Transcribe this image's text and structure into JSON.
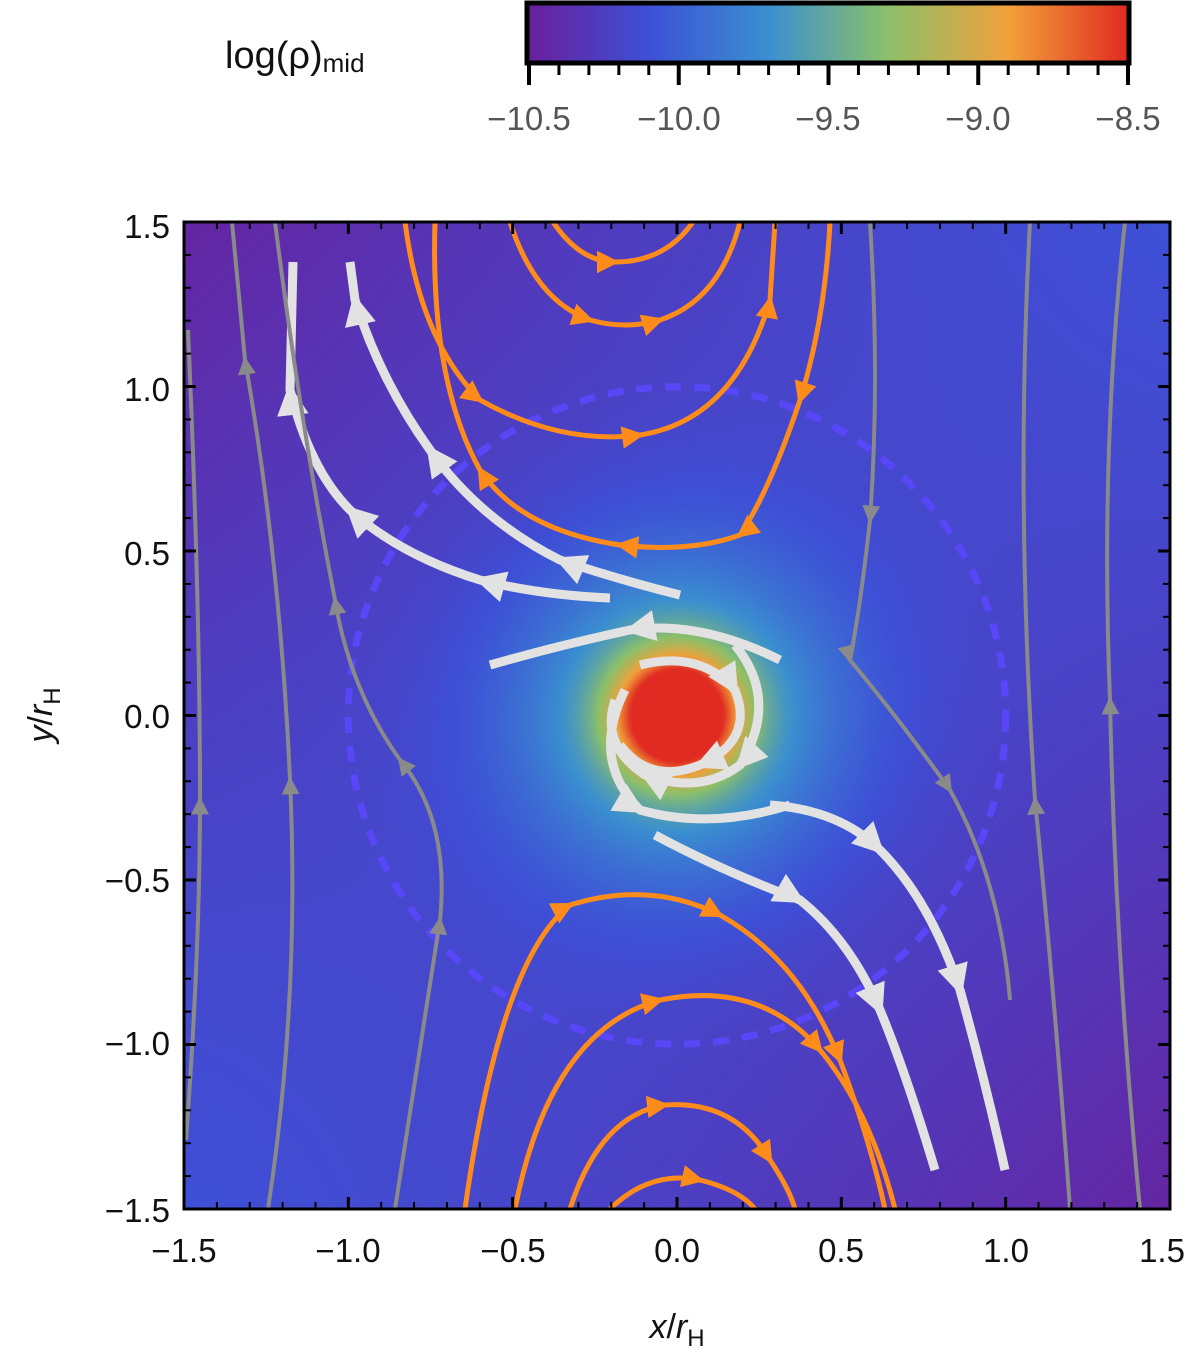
{
  "chart_data": {
    "type": "heatmap",
    "overlay": "streamlines",
    "xlabel": {
      "var": "x",
      "sep": "/",
      "base": "r",
      "sub": "H"
    },
    "ylabel": {
      "var": "y",
      "sep": "/",
      "base": "r",
      "sub": "H"
    },
    "xlim": [
      -1.5,
      1.5
    ],
    "ylim": [
      -1.5,
      1.5
    ],
    "x_ticks": [
      "−1.5",
      "−1.0",
      "−0.5",
      "0.0",
      "0.5",
      "1.0",
      "1.5"
    ],
    "x_tick_values": [
      -1.5,
      -1.0,
      -0.5,
      0.0,
      0.5,
      1.0,
      1.5
    ],
    "y_ticks": [
      "−1.5",
      "−1.0",
      "−0.5",
      "0.0",
      "0.5",
      "1.0",
      "1.5"
    ],
    "y_tick_values": [
      -1.5,
      -1.0,
      -0.5,
      0.0,
      0.5,
      1.0,
      1.5
    ],
    "colorbar": {
      "title": {
        "base": "log(ρ)",
        "sub": "mid"
      },
      "range": [
        -10.5,
        -8.5
      ],
      "ticks": [
        "−10.5",
        "−10.0",
        "−9.5",
        "−9.0",
        "−8.5"
      ],
      "tick_values": [
        -10.5,
        -10.0,
        -9.5,
        -9.0,
        -8.5
      ],
      "colormap": [
        "#6a1f9a",
        "#3e4fd6",
        "#3a8fd0",
        "#8cc06a",
        "#f1a13a",
        "#e02a22"
      ],
      "placement": "top"
    },
    "density_model": {
      "background": -10.15,
      "peak": -8.3,
      "core_radius": 0.12,
      "halo_amplitude": 0.8,
      "halo_radius": 0.33
    },
    "hill_sphere": {
      "radius": 1.0,
      "style": "dashed",
      "color": "#5c48ff"
    },
    "stream_colors": {
      "horseshoe": "#ff8c1a",
      "circumplanetary": "#e2e2e2",
      "passing": "#8a8a8a"
    }
  }
}
